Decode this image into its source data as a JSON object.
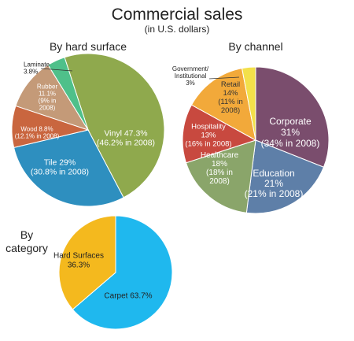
{
  "header": {
    "title": "Commercial sales",
    "subtitle": "(in U.S. dollars)"
  },
  "chart_data": [
    {
      "type": "pie",
      "title": "By hard surface",
      "slices": [
        {
          "name": "Vinyl",
          "value": 47.3,
          "label_lines": [
            "Vinyl 47.3%",
            "(46.2% in 2008)"
          ],
          "label_color": "#ffffff",
          "color": "#8fa94d"
        },
        {
          "name": "Tile",
          "value": 29.0,
          "label_lines": [
            "Tile 29%",
            "(30.8% in 2008)"
          ],
          "label_color": "#ffffff",
          "color": "#2e8fbf"
        },
        {
          "name": "Wood",
          "value": 8.8,
          "label_lines": [
            "Wood 8.8%",
            "(12.1% in 2008)"
          ],
          "label_color": "#ffffff",
          "color": "#c9663f"
        },
        {
          "name": "Rubber",
          "value": 11.1,
          "label_lines": [
            "Rubber",
            "11.1%",
            "(9% in",
            "2008)"
          ],
          "label_color": "#ffffff",
          "color": "#c49a78"
        },
        {
          "name": "Laminate",
          "value": 3.8,
          "label_lines": [
            "Laminate",
            "3.8%"
          ],
          "label_color": "#222222",
          "color": "#4fc08a"
        }
      ]
    },
    {
      "type": "pie",
      "title": "By channel",
      "slices": [
        {
          "name": "Corporate",
          "value": 31,
          "label_lines": [
            "Corporate",
            "31%",
            "(34% in 2008)"
          ],
          "label_color": "#ffffff",
          "color": "#7a4d6d"
        },
        {
          "name": "Education",
          "value": 21,
          "label_lines": [
            "Education",
            "21%",
            "(21% in 2008)"
          ],
          "label_color": "#ffffff",
          "color": "#5e7fa8"
        },
        {
          "name": "Healthcare",
          "value": 18,
          "label_lines": [
            "Healthcare",
            "18%",
            "(18% in",
            "2008)"
          ],
          "label_color": "#ffffff",
          "color": "#8aa56a"
        },
        {
          "name": "Hospitality",
          "value": 13,
          "label_lines": [
            "Hospitality",
            "13%",
            "(16% in 2008)"
          ],
          "label_color": "#ffffff",
          "color": "#c8493f"
        },
        {
          "name": "Retail",
          "value": 14,
          "label_lines": [
            "Retail",
            "14%",
            "(11% in",
            "2008)"
          ],
          "label_color": "#333333",
          "color": "#f2a93a"
        },
        {
          "name": "Government/Institutional",
          "value": 3,
          "label_lines": [
            "Government/",
            "Institutional",
            "3%"
          ],
          "label_color": "#222222",
          "color": "#f3e04a"
        }
      ]
    },
    {
      "type": "pie",
      "title": "By category",
      "title_lines": [
        "By",
        "category"
      ],
      "slices": [
        {
          "name": "Carpet",
          "value": 63.7,
          "label_lines": [
            "Carpet 63.7%"
          ],
          "label_color": "#222222",
          "color": "#1fb8ee"
        },
        {
          "name": "Hard Surfaces",
          "value": 36.3,
          "label_lines": [
            "Hard Surfaces",
            "36.3%"
          ],
          "label_color": "#222222",
          "color": "#f4b91e"
        }
      ]
    }
  ]
}
